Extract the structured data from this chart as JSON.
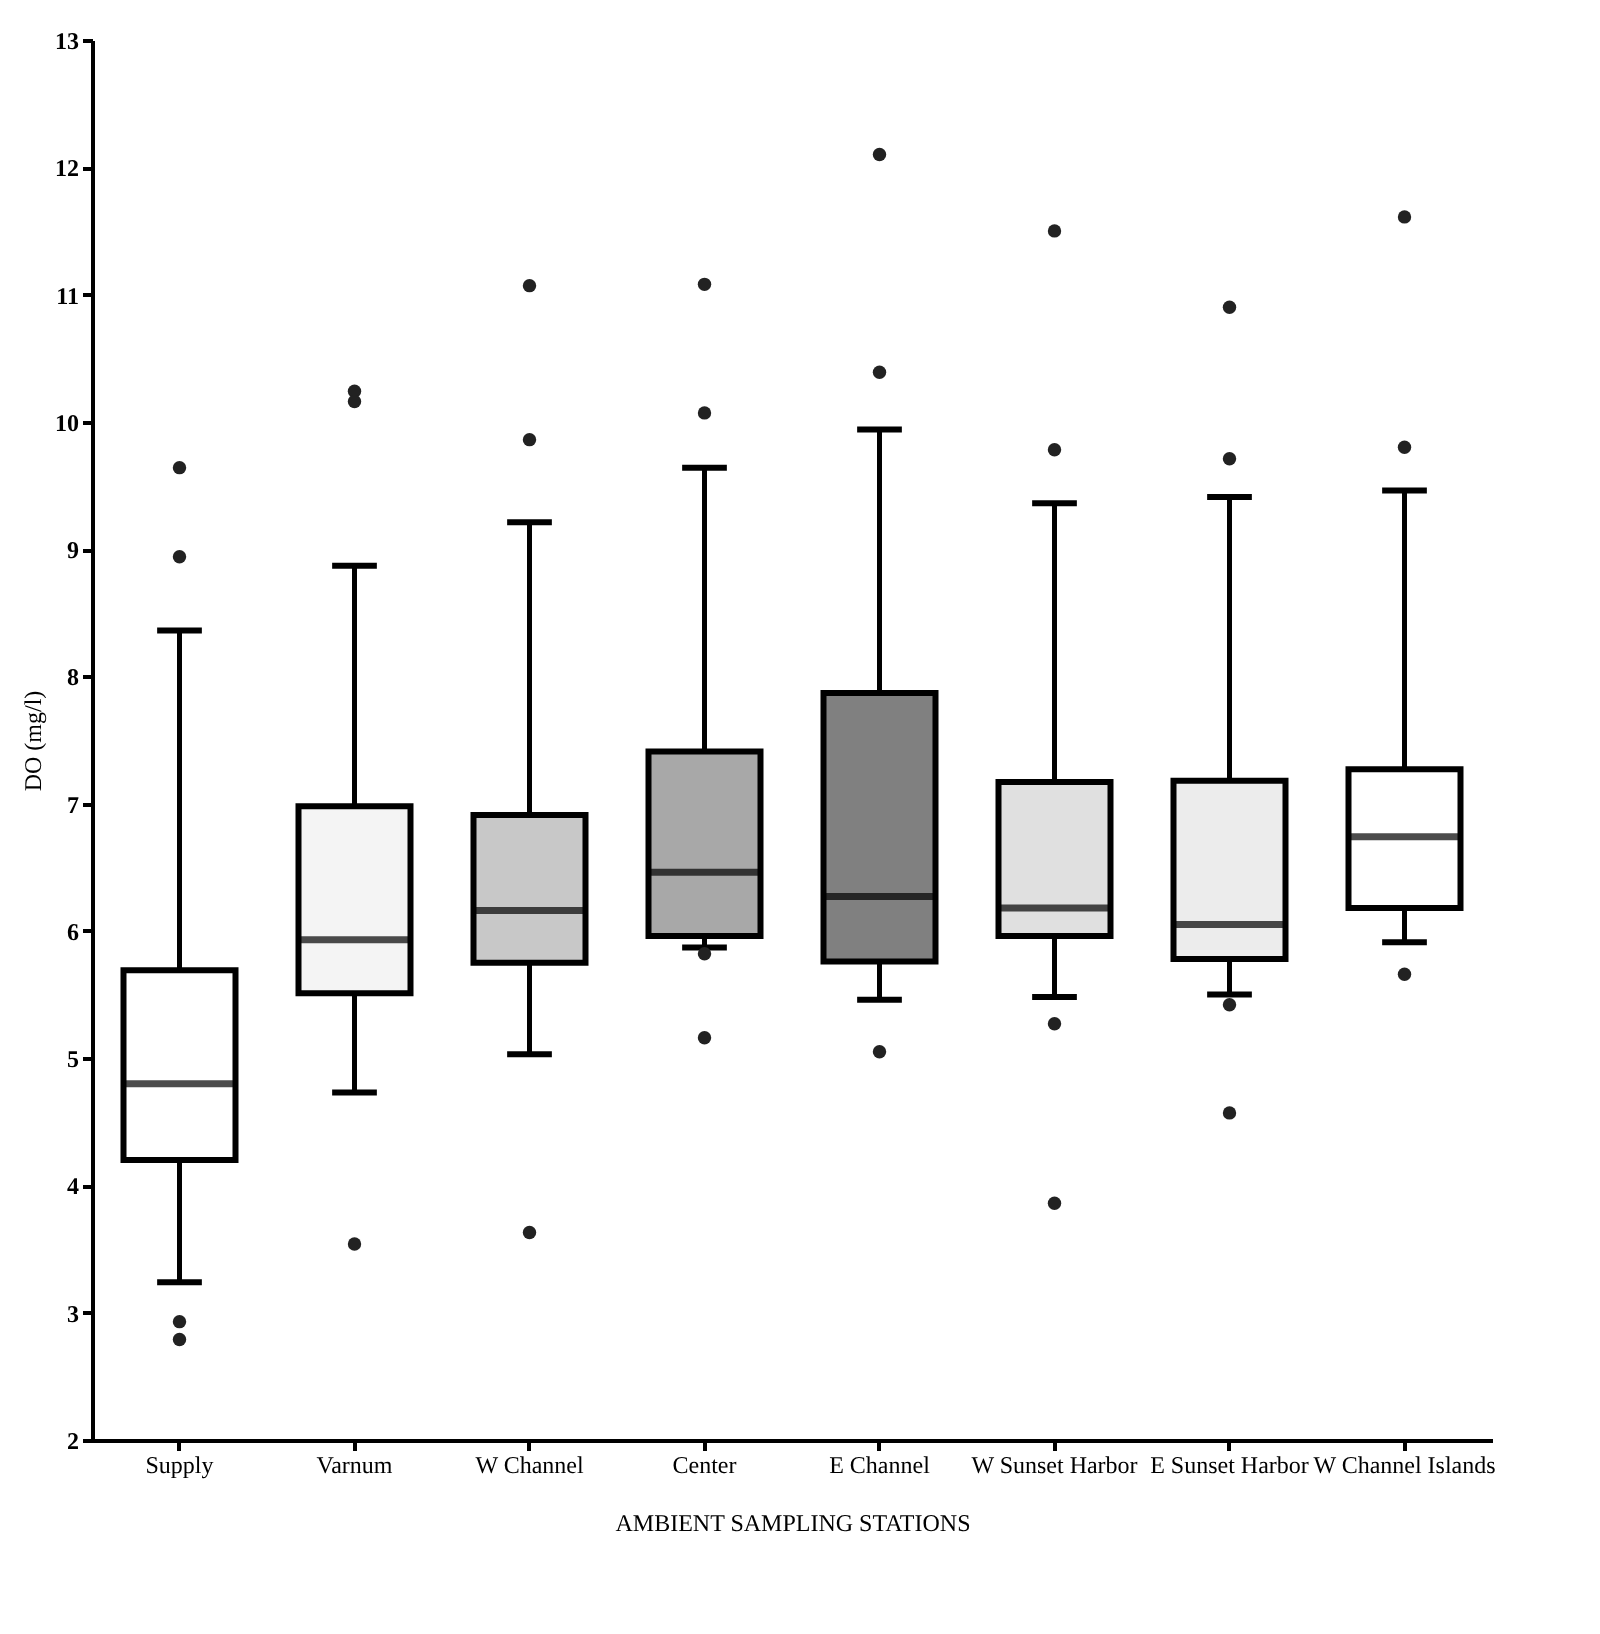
{
  "chart_data": {
    "type": "box",
    "xlabel": "AMBIENT SAMPLING STATIONS",
    "ylabel": "DO (mg/l)",
    "categories": [
      "Supply",
      "Varnum",
      "W Channel",
      "Center",
      "E Channel",
      "W Sunset Harbor",
      "E Sunset Harbor",
      "W Channel Islands"
    ],
    "colors": [
      "#ffffff",
      "#f4f4f4",
      "#c8c8c8",
      "#a8a8a8",
      "#808080",
      "#e0e0e0",
      "#ececec",
      "#ffffff"
    ],
    "boxes": [
      {
        "low": 3.24,
        "q1": 4.2,
        "median": 4.8,
        "q3": 5.69,
        "high": 8.36,
        "outliers": [
          9.64,
          8.94,
          2.93,
          2.79
        ]
      },
      {
        "low": 4.73,
        "q1": 5.51,
        "median": 5.93,
        "q3": 6.98,
        "high": 8.87,
        "outliers": [
          10.24,
          10.16,
          3.54
        ]
      },
      {
        "low": 5.03,
        "q1": 5.75,
        "median": 6.16,
        "q3": 6.91,
        "high": 9.21,
        "outliers": [
          11.07,
          9.86,
          3.63
        ]
      },
      {
        "low": 5.87,
        "q1": 5.96,
        "median": 6.46,
        "q3": 7.41,
        "high": 9.64,
        "outliers": [
          11.08,
          10.07,
          5.82,
          5.16
        ]
      },
      {
        "low": 5.46,
        "q1": 5.76,
        "median": 6.27,
        "q3": 7.87,
        "high": 9.94,
        "outliers": [
          12.1,
          10.39,
          5.05
        ]
      },
      {
        "low": 5.48,
        "q1": 5.96,
        "median": 6.18,
        "q3": 7.17,
        "high": 9.36,
        "outliers": [
          11.5,
          9.78,
          5.27,
          3.86
        ]
      },
      {
        "low": 5.5,
        "q1": 5.78,
        "median": 6.05,
        "q3": 7.18,
        "high": 9.41,
        "outliers": [
          10.9,
          9.71,
          5.42,
          4.57
        ]
      },
      {
        "low": 5.91,
        "q1": 6.18,
        "median": 6.74,
        "q3": 7.27,
        "high": 9.46,
        "outliers": [
          11.61,
          9.8,
          5.66
        ]
      }
    ],
    "ylim": [
      2,
      13
    ],
    "yticks": [
      2,
      3,
      4,
      5,
      6,
      7,
      8,
      9,
      10,
      11,
      12,
      13
    ],
    "grid": false,
    "marker": "circle"
  }
}
